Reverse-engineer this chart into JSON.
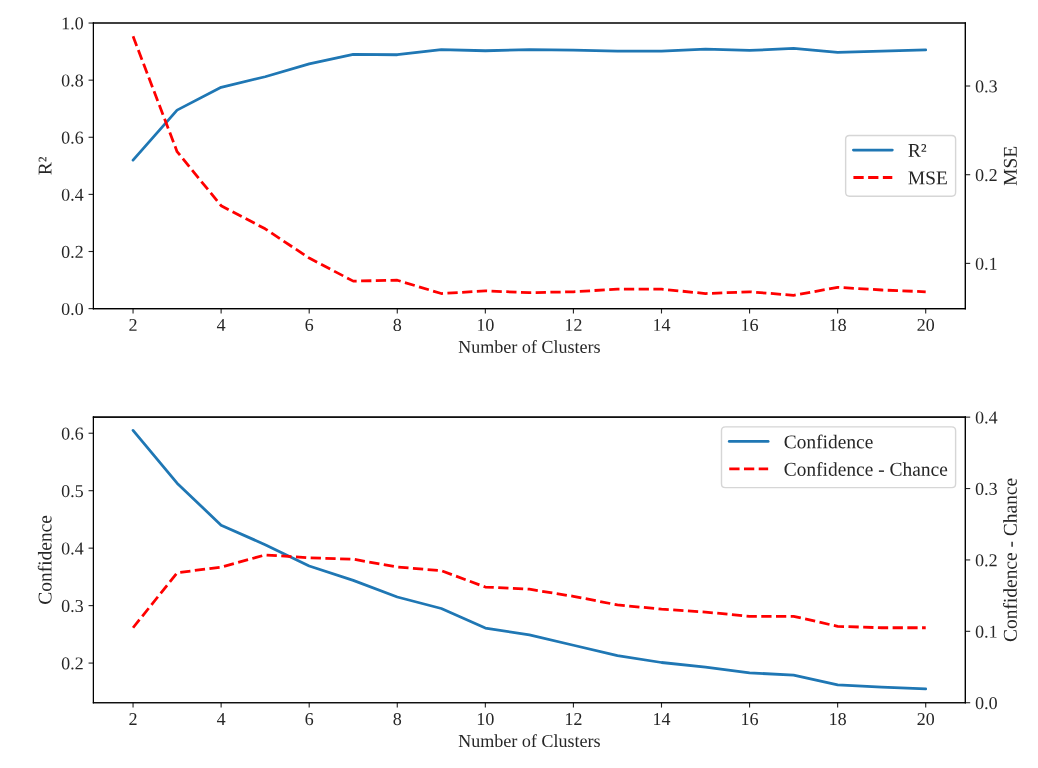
{
  "chart_data": [
    {
      "type": "line",
      "xlabel": "Number of Clusters",
      "ylabel": "R²",
      "y2label": "MSE",
      "x": [
        2,
        3,
        4,
        5,
        6,
        7,
        8,
        9,
        10,
        11,
        12,
        13,
        14,
        15,
        16,
        17,
        18,
        19,
        20
      ],
      "xlim": [
        1.1,
        20.9
      ],
      "xticks": [
        2,
        4,
        6,
        8,
        10,
        12,
        14,
        16,
        18,
        20
      ],
      "ylim": [
        0.0,
        1.0
      ],
      "yticks": [
        {
          "value": 0.0,
          "label": "0.0"
        },
        {
          "value": 0.2,
          "label": "0.2"
        },
        {
          "value": 0.4,
          "label": "0.4"
        },
        {
          "value": 0.6,
          "label": "0.6"
        },
        {
          "value": 0.8,
          "label": "0.8"
        },
        {
          "value": 1.0,
          "label": "1.0"
        }
      ],
      "y2lim": [
        0.049,
        0.371
      ],
      "y2ticks": [
        0.1,
        0.2,
        0.3
      ],
      "legend": "center right",
      "grid": false,
      "series": [
        {
          "name": "R²",
          "color": "#1f77b4",
          "line_style": "solid",
          "values": [
            0.52,
            0.695,
            0.775,
            0.812,
            0.857,
            0.89,
            0.889,
            0.907,
            0.903,
            0.907,
            0.905,
            0.902,
            0.902,
            0.909,
            0.904,
            0.911,
            0.897,
            0.902,
            0.906
          ]
        },
        {
          "name": "MSE",
          "color": "#ff0000",
          "line_style": "dashed",
          "axis": "y2",
          "values": [
            0.356,
            0.226,
            0.165,
            0.139,
            0.106,
            0.08,
            0.081,
            0.066,
            0.069,
            0.067,
            0.068,
            0.071,
            0.071,
            0.066,
            0.068,
            0.064,
            0.073,
            0.07,
            0.068
          ]
        }
      ]
    },
    {
      "type": "line",
      "xlabel": "Number of Clusters",
      "ylabel": "Confidence",
      "y2label": "Confidence - Chance",
      "x": [
        2,
        3,
        4,
        5,
        6,
        7,
        8,
        9,
        10,
        11,
        12,
        13,
        14,
        15,
        16,
        17,
        18,
        19,
        20
      ],
      "xlim": [
        1.1,
        20.9
      ],
      "xticks": [
        2,
        4,
        6,
        8,
        10,
        12,
        14,
        16,
        18,
        20
      ],
      "ylim": [
        0.131,
        0.628
      ],
      "yticks": [
        0.2,
        0.3,
        0.4,
        0.5,
        0.6
      ],
      "y2lim": [
        0.0,
        0.4
      ],
      "y2ticks": [
        {
          "value": 0.0,
          "label": "0.0"
        },
        0.1,
        0.2,
        0.3,
        0.4
      ],
      "legend": "top right",
      "grid": false,
      "series": [
        {
          "name": "Confidence",
          "color": "#1f77b4",
          "line_style": "solid",
          "values": [
            0.605,
            0.513,
            0.44,
            0.406,
            0.369,
            0.344,
            0.315,
            0.295,
            0.261,
            0.249,
            0.231,
            0.213,
            0.201,
            0.193,
            0.183,
            0.179,
            0.162,
            0.158,
            0.155
          ]
        },
        {
          "name": "Confidence - Chance",
          "color": "#ff0000",
          "line_style": "dashed",
          "axis": "y2",
          "values": [
            0.105,
            0.182,
            0.19,
            0.207,
            0.203,
            0.201,
            0.19,
            0.185,
            0.162,
            0.159,
            0.149,
            0.137,
            0.131,
            0.127,
            0.121,
            0.121,
            0.107,
            0.105,
            0.105
          ]
        }
      ]
    }
  ]
}
